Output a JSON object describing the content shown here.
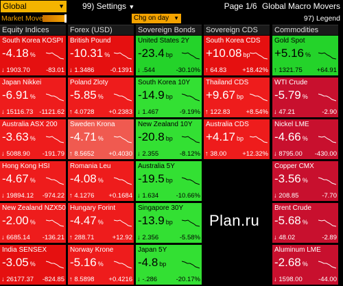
{
  "toolbar": {
    "region_label": "Global",
    "settings_label": "99) Settings",
    "page_info": "Page 1/6",
    "page_title": "Global Macro Movers"
  },
  "filter_bar": {
    "market_move_label": "Market Move",
    "sort_label": "Chg on day",
    "legend_label": "97) Legend"
  },
  "columns": [
    {
      "header": "Equity Indices",
      "tiles": [
        {
          "name": "South Korea KOSPI",
          "chg": "-4.18",
          "unit": "%",
          "level": "↓ 1903.70",
          "abs": "-83.01",
          "color": "red2"
        },
        {
          "name": "Japan Nikkei",
          "chg": "-6.91",
          "unit": "%",
          "level": "↓ 15116.73",
          "abs": "-1121.62",
          "color": "red"
        },
        {
          "name": "Australia ASX 200",
          "chg": "-3.63",
          "unit": "%",
          "level": "↓ 5088.90",
          "abs": "-191.79",
          "color": "red"
        },
        {
          "name": "Hong Kong HSI",
          "chg": "-4.67",
          "unit": "%",
          "level": "↓ 19894.12",
          "abs": "-974.22",
          "color": "red"
        },
        {
          "name": "New Zealand NZX50",
          "chg": "-2.00",
          "unit": "%",
          "level": "↓ 6685.14",
          "abs": "-136.21",
          "color": "red"
        },
        {
          "name": "India SENSEX",
          "chg": "-3.05",
          "unit": "%",
          "level": "↓ 26177.37",
          "abs": "-824.85",
          "color": "red2"
        }
      ]
    },
    {
      "header": "Forex (USD)",
      "tiles": [
        {
          "name": "British Pound",
          "chg": "-10.31",
          "unit": "%",
          "level": "↓ 1.3486",
          "abs": "-0.1391",
          "color": "red2"
        },
        {
          "name": "Poland Zloty",
          "chg": "-5.85",
          "unit": "%",
          "level": "↑ 4.0728",
          "abs": "+0.2383",
          "color": "red"
        },
        {
          "name": "Sweden Krona",
          "chg": "-4.71",
          "unit": "%",
          "level": "↑ 8.5652",
          "abs": "+0.4030",
          "color": "salmon"
        },
        {
          "name": "Romania Leu",
          "chg": "-4.08",
          "unit": "%",
          "level": "↑ 4.1276",
          "abs": "+0.1684",
          "color": "red"
        },
        {
          "name": "Hungary Forint",
          "chg": "-4.47",
          "unit": "%",
          "level": "↑ 288.71",
          "abs": "+12.92",
          "color": "red"
        },
        {
          "name": "Norway Krone",
          "chg": "-5.16",
          "unit": "%",
          "level": "↑ 8.5898",
          "abs": "+0.4216",
          "color": "red"
        }
      ]
    },
    {
      "header": "Sovereign Bonds",
      "tiles": [
        {
          "name": "United States 2Y",
          "chg": "-23.4",
          "unit": "bp",
          "level": "↓ .544",
          "abs": "-30.10%",
          "color": "green"
        },
        {
          "name": "South Korea 10Y",
          "chg": "-14.9",
          "unit": "bp",
          "level": "↓ 1.467",
          "abs": "-9.19%",
          "color": "lgreen"
        },
        {
          "name": "New Zealand 10Y",
          "chg": "-20.8",
          "unit": "bp",
          "level": "↓ 2.355",
          "abs": "-8.12%",
          "color": "lgreen"
        },
        {
          "name": "Australia 5Y",
          "chg": "-19.5",
          "unit": "bp",
          "level": "↓ 1.634",
          "abs": "-10.66%",
          "color": "lgreen"
        },
        {
          "name": "Singapore 30Y",
          "chg": "-13.9",
          "unit": "bp",
          "level": "↓ 2.356",
          "abs": "-5.58%",
          "color": "lgreen"
        },
        {
          "name": "Japan 5Y",
          "chg": "-4.8",
          "unit": "bp",
          "level": "↓ -.286",
          "abs": "-20.17%",
          "color": "lgreen"
        }
      ]
    },
    {
      "header": "Sovereign CDS",
      "tiles": [
        {
          "name": "South Korea CDS",
          "chg": "+10.08",
          "unit": "bp",
          "level": "↑ 64.83",
          "abs": "+18.42%",
          "color": "red2"
        },
        {
          "name": "Thailand CDS",
          "chg": "+9.67",
          "unit": "bp",
          "level": "↑ 122.83",
          "abs": "+8.54%",
          "color": "red"
        },
        {
          "name": "Australia CDS",
          "chg": "+4.17",
          "unit": "bp",
          "level": "↑ 38.00",
          "abs": "+12.32%",
          "color": "red"
        }
      ]
    },
    {
      "header": "Commodities",
      "tiles": [
        {
          "name": "Gold Spot",
          "chg": "+5.16",
          "unit": "%",
          "level": "↑ 1321.75",
          "abs": "+64.91",
          "color": "green"
        },
        {
          "name": "WTI Crude",
          "chg": "-5.79",
          "unit": "%",
          "level": "↓ 47.21",
          "abs": "-2.90",
          "color": "crimson"
        },
        {
          "name": "Nickel LME",
          "chg": "-4.66",
          "unit": "%",
          "level": "↓ 8795.00",
          "abs": "-430.00",
          "color": "crimson"
        },
        {
          "name": "Copper CMX",
          "chg": "-3.56",
          "unit": "%",
          "level": "↓ 208.85",
          "abs": "-7.70",
          "color": "crimson"
        },
        {
          "name": "Brent Crude",
          "chg": "-5.68",
          "unit": "%",
          "level": "↓ 48.02",
          "abs": "-2.89",
          "color": "crimson"
        },
        {
          "name": "Aluminum LME",
          "chg": "-2.68",
          "unit": "%",
          "level": "↓ 1598.00",
          "abs": "-44.00",
          "color": "crimson"
        }
      ]
    }
  ],
  "watermark": "Plan.ru",
  "colors": {
    "accent": "#f4a300",
    "red": "#ee1c1c",
    "red2": "#e51010",
    "salmon": "#f05a50",
    "green": "#24d32a",
    "lgreen": "#33e033",
    "crimson": "#c8102e"
  }
}
